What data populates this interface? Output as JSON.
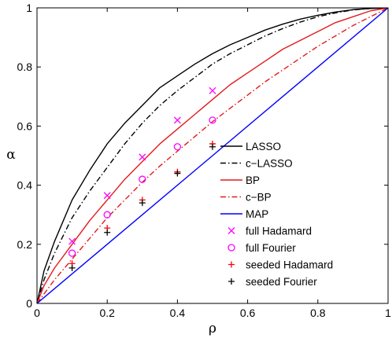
{
  "chart_data": {
    "type": "line",
    "title": "",
    "xlabel": "ρ",
    "ylabel": "α",
    "xlim": [
      0,
      1
    ],
    "ylim": [
      0,
      1
    ],
    "xticks": [
      "0",
      "0.2",
      "0.4",
      "0.6",
      "0.8",
      "1"
    ],
    "yticks": [
      "0",
      "0.2",
      "0.4",
      "0.6",
      "0.8",
      "1"
    ],
    "legend_position": "bottom-right",
    "grid": false,
    "series": [
      {
        "name": "LASSO",
        "kind": "line",
        "color": "#000000",
        "dash": "solid",
        "x": [
          0,
          0.02,
          0.05,
          0.1,
          0.15,
          0.2,
          0.25,
          0.3,
          0.35,
          0.4,
          0.45,
          0.5,
          0.55,
          0.6,
          0.65,
          0.7,
          0.75,
          0.8,
          0.85,
          0.9,
          0.95,
          1.0
        ],
        "y": [
          0,
          0.11,
          0.21,
          0.35,
          0.45,
          0.54,
          0.61,
          0.67,
          0.73,
          0.77,
          0.81,
          0.845,
          0.875,
          0.9,
          0.925,
          0.945,
          0.962,
          0.975,
          0.986,
          0.994,
          0.998,
          1.0
        ]
      },
      {
        "name": "c−LASSO",
        "kind": "line",
        "color": "#000000",
        "dash": "dashdot",
        "x": [
          0,
          0.02,
          0.05,
          0.1,
          0.15,
          0.2,
          0.25,
          0.3,
          0.35,
          0.4,
          0.45,
          0.5,
          0.55,
          0.6,
          0.65,
          0.7,
          0.75,
          0.8,
          0.85,
          0.9,
          0.95,
          1.0
        ],
        "y": [
          0,
          0.08,
          0.17,
          0.29,
          0.38,
          0.46,
          0.54,
          0.61,
          0.67,
          0.72,
          0.765,
          0.81,
          0.845,
          0.875,
          0.905,
          0.93,
          0.952,
          0.97,
          0.983,
          0.993,
          0.998,
          1.0
        ]
      },
      {
        "name": "BP",
        "kind": "line",
        "color": "#e31a1c",
        "dash": "solid",
        "x": [
          0,
          0.02,
          0.05,
          0.1,
          0.15,
          0.2,
          0.25,
          0.3,
          0.35,
          0.4,
          0.45,
          0.5,
          0.55,
          0.6,
          0.65,
          0.7,
          0.75,
          0.8,
          0.85,
          0.9,
          0.95,
          1.0
        ],
        "y": [
          0,
          0.06,
          0.12,
          0.2,
          0.28,
          0.35,
          0.42,
          0.48,
          0.54,
          0.59,
          0.64,
          0.69,
          0.74,
          0.78,
          0.82,
          0.86,
          0.89,
          0.92,
          0.95,
          0.97,
          0.99,
          1.0
        ]
      },
      {
        "name": "c−BP",
        "kind": "line",
        "color": "#e31a1c",
        "dash": "dashdot",
        "x": [
          0,
          0.05,
          0.1,
          0.15,
          0.2,
          0.25,
          0.3,
          0.35,
          0.4,
          0.45,
          0.5,
          0.55,
          0.6,
          0.65,
          0.7,
          0.75,
          0.8,
          0.85,
          0.9,
          0.95,
          1.0
        ],
        "y": [
          0,
          0.08,
          0.15,
          0.22,
          0.29,
          0.35,
          0.41,
          0.465,
          0.515,
          0.565,
          0.615,
          0.66,
          0.705,
          0.75,
          0.79,
          0.83,
          0.87,
          0.905,
          0.94,
          0.97,
          1.0
        ]
      },
      {
        "name": "MAP",
        "kind": "line",
        "color": "#0000ff",
        "dash": "solid",
        "x": [
          0,
          1
        ],
        "y": [
          0,
          1
        ]
      },
      {
        "name": "full Hadamard",
        "kind": "marker",
        "marker": "x",
        "color": "#ff00ff",
        "x": [
          0.1,
          0.2,
          0.3,
          0.4,
          0.5
        ],
        "y": [
          0.21,
          0.365,
          0.495,
          0.62,
          0.72
        ]
      },
      {
        "name": "full Fourier",
        "kind": "marker",
        "marker": "o",
        "color": "#ff00ff",
        "x": [
          0.1,
          0.2,
          0.3,
          0.4,
          0.5
        ],
        "y": [
          0.17,
          0.3,
          0.42,
          0.53,
          0.62
        ]
      },
      {
        "name": "seeded Hadamard",
        "kind": "marker",
        "marker": "+",
        "color": "#ff0000",
        "x": [
          0.1,
          0.2,
          0.3,
          0.4,
          0.5
        ],
        "y": [
          0.135,
          0.255,
          0.35,
          0.445,
          0.54
        ]
      },
      {
        "name": "seeded Fourier",
        "kind": "marker",
        "marker": "+",
        "color": "#000000",
        "x": [
          0.1,
          0.2,
          0.3,
          0.4,
          0.5
        ],
        "y": [
          0.12,
          0.24,
          0.34,
          0.44,
          0.53
        ]
      }
    ]
  }
}
